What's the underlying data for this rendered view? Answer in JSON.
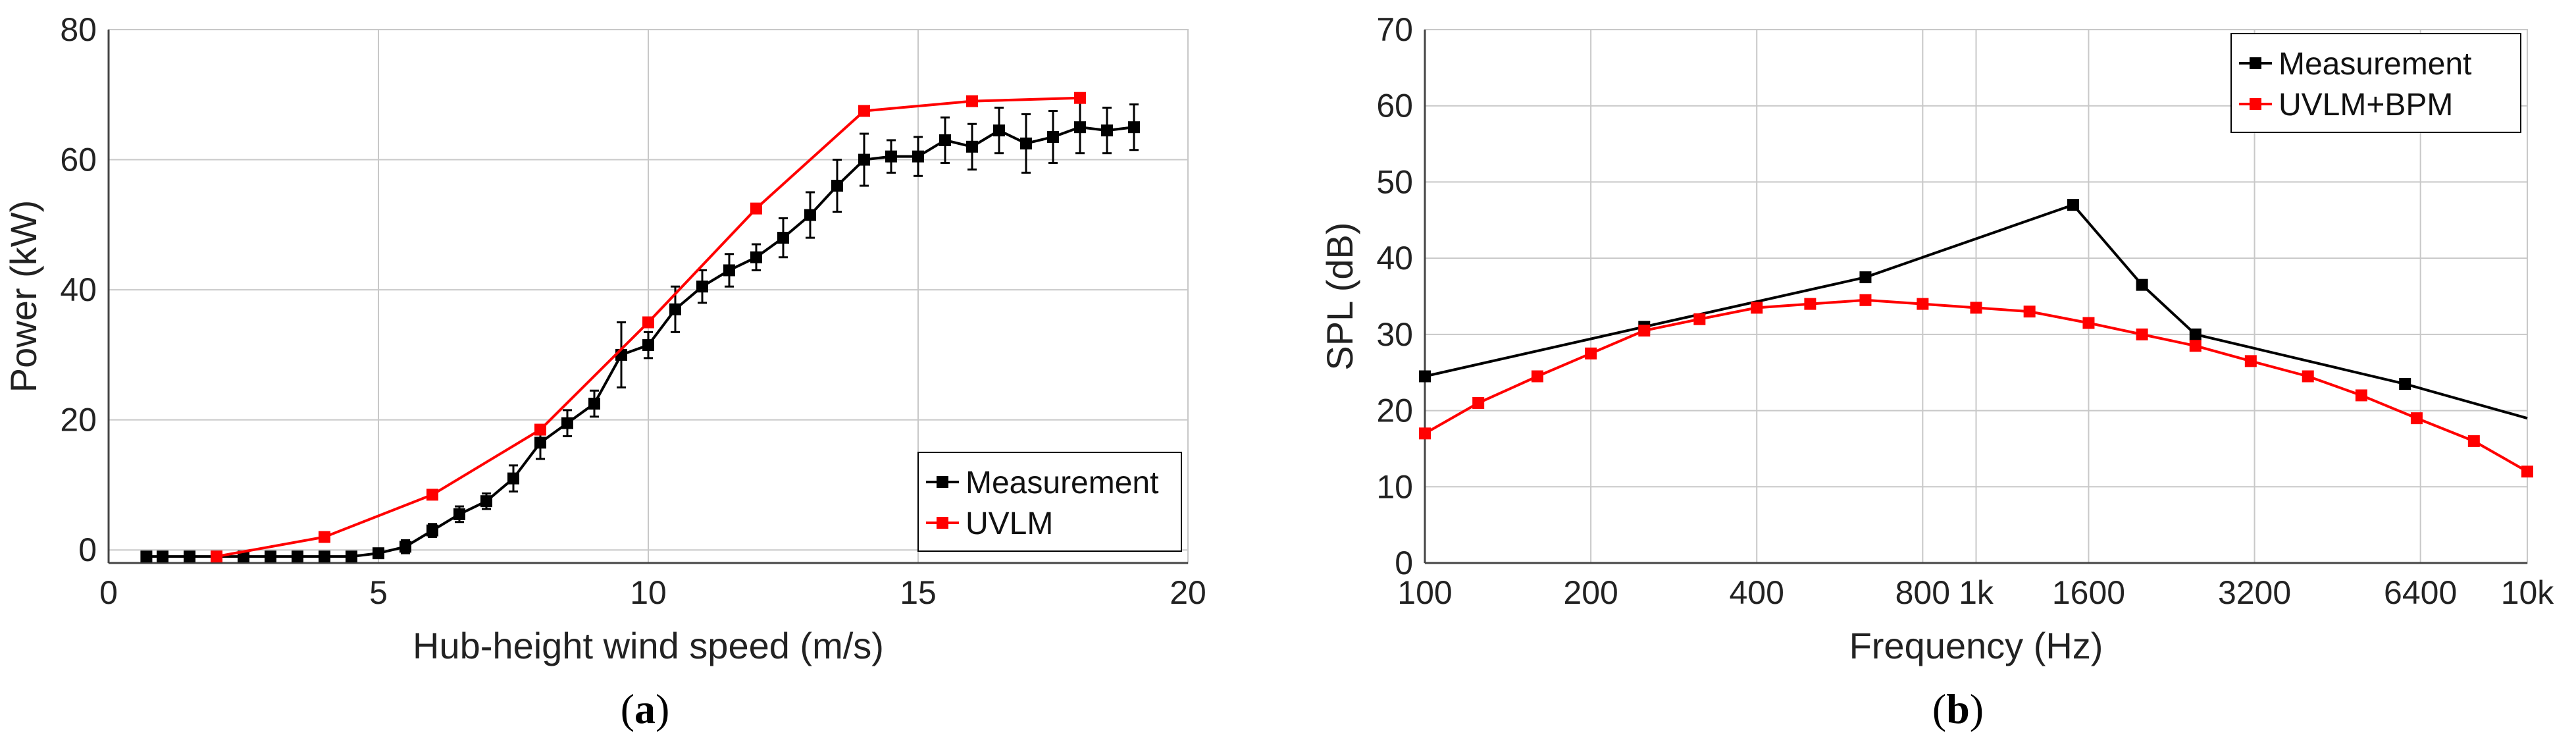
{
  "colors": {
    "measurement": "#000000",
    "model": "#ff0000",
    "grid": "#c8c8c8",
    "axis": "#000000"
  },
  "panels": [
    {
      "label": "a",
      "chart_data": {
        "type": "line",
        "title": "",
        "xlabel": "Hub-height wind speed (m/s)",
        "ylabel": "Power (kW)",
        "xscale": "linear",
        "xlim": [
          0,
          20
        ],
        "ylim": [
          -2,
          80
        ],
        "xticks": [
          0,
          5,
          10,
          15,
          20
        ],
        "xtick_labels": [
          "0",
          "5",
          "10",
          "15",
          "20"
        ],
        "yticks": [
          0,
          20,
          40,
          60,
          80
        ],
        "ytick_labels": [
          "0",
          "20",
          "40",
          "60",
          "80"
        ],
        "grid": true,
        "legend": "bottom-right",
        "series": [
          {
            "name": "Measurement",
            "color": "#000000",
            "x": [
              0.7,
              1.0,
              1.5,
              2.0,
              2.5,
              3.0,
              3.5,
              4.0,
              4.5,
              5.0,
              5.5,
              6.0,
              6.5,
              7.0,
              7.5,
              8.0,
              8.5,
              9.0,
              9.5,
              10.0,
              10.5,
              11.0,
              11.5,
              12.0,
              12.5,
              13.0,
              13.5,
              14.0,
              14.5,
              15.0,
              15.5,
              16.0,
              16.5,
              17.0,
              17.5,
              18.0,
              18.5,
              19.0
            ],
            "y": [
              -1,
              -1,
              -1,
              -1,
              -1,
              -1,
              -1,
              -1,
              -1,
              -0.5,
              0.5,
              3,
              5.5,
              7.5,
              11,
              16.5,
              19.5,
              22.5,
              30,
              31.5,
              37,
              40.5,
              43,
              45,
              48,
              51.5,
              56,
              60,
              60.5,
              60.5,
              63,
              62,
              64.5,
              62.5,
              63.5,
              65,
              64.5,
              65
            ],
            "yerr": [
              0,
              0,
              0,
              0,
              0,
              0,
              0,
              0,
              0,
              0.5,
              1,
              1,
              1.2,
              1.2,
              2,
              2.5,
              2,
              2,
              5,
              2,
              3.5,
              2.5,
              2.5,
              2,
              3,
              3.5,
              4,
              4,
              2.5,
              3,
              3.5,
              3.5,
              3.5,
              4.5,
              4,
              4,
              3.5,
              3.5
            ]
          },
          {
            "name": "UVLM",
            "color": "#ff0000",
            "x": [
              2,
              4,
              6,
              8,
              10,
              12,
              14,
              16,
              18
            ],
            "y": [
              -1,
              2,
              8.5,
              18.5,
              35,
              52.5,
              67.5,
              69,
              69.5
            ]
          }
        ]
      }
    },
    {
      "label": "b",
      "chart_data": {
        "type": "line",
        "title": "",
        "xlabel": "Frequency (Hz)",
        "ylabel": "SPL (dB)",
        "xscale": "log",
        "xlim": [
          100,
          10000
        ],
        "ylim": [
          0,
          70
        ],
        "xticks": [
          100,
          200,
          400,
          800,
          1000,
          1600,
          3200,
          6400,
          10000
        ],
        "xtick_labels": [
          "100",
          "200",
          "400",
          "800",
          "1k",
          "1600",
          "3200",
          "6400",
          "10k"
        ],
        "yticks": [
          0,
          10,
          20,
          30,
          40,
          50,
          60,
          70
        ],
        "ytick_labels": [
          "0",
          "10",
          "20",
          "30",
          "40",
          "50",
          "60",
          "70"
        ],
        "grid": true,
        "legend": "top-right",
        "series": [
          {
            "name": "Measurement",
            "color": "#000000",
            "x": [
              100,
              250,
              630,
              1500,
              2000,
              2500,
              6000,
              10000
            ],
            "y": [
              24.5,
              31,
              37.5,
              47,
              36.5,
              30,
              23.5,
              null
            ],
            "line_end": {
              "x": 10000,
              "y": 19
            }
          },
          {
            "name": "UVLM+BPM",
            "color": "#ff0000",
            "x": [
              100,
              125,
              160,
              200,
              250,
              315,
              400,
              500,
              630,
              800,
              1000,
              1250,
              1600,
              2000,
              2500,
              3150,
              4000,
              5000,
              6300,
              8000,
              10000
            ],
            "y": [
              17,
              21,
              24.5,
              27.5,
              30.5,
              32,
              33.5,
              34,
              34.5,
              34,
              33.5,
              33,
              31.5,
              30,
              28.5,
              26.5,
              24.5,
              22,
              19,
              16,
              12
            ]
          }
        ]
      }
    }
  ]
}
